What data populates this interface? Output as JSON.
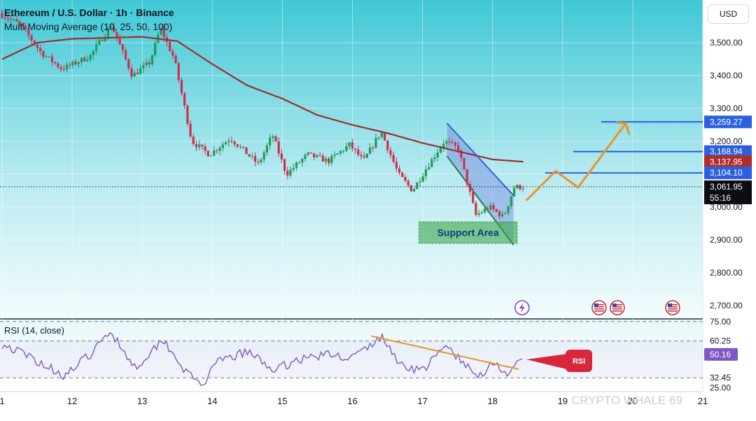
{
  "header": {
    "title": "Ethereum / U.S. Dollar · 1h · Binance",
    "indicator": "Multi Moving Average (10, 25, 50, 100)"
  },
  "currency_button": "USD",
  "watermark": "CRYPTO WHALE 69",
  "colors": {
    "background_top": "#3fc8d6",
    "background_bottom": "#f4fcfd",
    "candle_up": "#1f9a58",
    "candle_down": "#d12e4a",
    "ma_line": "#9b2f2f",
    "target_line": "#2b5fe0",
    "projection": "#e6962a",
    "rsi_line": "#7e57c2",
    "rsi_trend": "#e6962a",
    "support_fill": "#3aa84a",
    "rsi_badge": "#d8263a"
  },
  "chart_data": [
    {
      "type": "candlestick",
      "title": "Ethereum / U.S. Dollar · 1h · Binance",
      "x_tick_labels": [
        "1",
        "12",
        "13",
        "14",
        "15",
        "16",
        "17",
        "18",
        "19",
        "20",
        "21"
      ],
      "y_ticks": [
        3500,
        3400,
        3300,
        3200,
        3100,
        3000,
        2900,
        2800,
        2700
      ],
      "y_tick_labels": [
        "3,500.00",
        "3,400.00",
        "3,300.00",
        "3,200.00",
        "3,100.00",
        "3,000.00",
        "2,900.00",
        "2,800.00",
        "2,700.00"
      ],
      "ylim": [
        2660,
        3630
      ],
      "grid": true,
      "price_path_anchors": [
        {
          "day": 11.0,
          "price": 3590
        },
        {
          "day": 11.3,
          "price": 3555
        },
        {
          "day": 11.6,
          "price": 3470
        },
        {
          "day": 11.9,
          "price": 3420
        },
        {
          "day": 12.3,
          "price": 3460
        },
        {
          "day": 12.6,
          "price": 3555
        },
        {
          "day": 12.9,
          "price": 3400
        },
        {
          "day": 13.15,
          "price": 3440
        },
        {
          "day": 13.3,
          "price": 3545
        },
        {
          "day": 13.5,
          "price": 3450
        },
        {
          "day": 13.75,
          "price": 3200
        },
        {
          "day": 14.0,
          "price": 3160
        },
        {
          "day": 14.3,
          "price": 3210
        },
        {
          "day": 14.7,
          "price": 3130
        },
        {
          "day": 14.9,
          "price": 3220
        },
        {
          "day": 15.1,
          "price": 3100
        },
        {
          "day": 15.4,
          "price": 3160
        },
        {
          "day": 15.7,
          "price": 3140
        },
        {
          "day": 16.0,
          "price": 3190
        },
        {
          "day": 16.2,
          "price": 3140
        },
        {
          "day": 16.45,
          "price": 3230
        },
        {
          "day": 16.7,
          "price": 3100
        },
        {
          "day": 16.9,
          "price": 3050
        },
        {
          "day": 17.1,
          "price": 3120
        },
        {
          "day": 17.35,
          "price": 3200
        },
        {
          "day": 17.55,
          "price": 3180
        },
        {
          "day": 17.8,
          "price": 2975
        },
        {
          "day": 18.0,
          "price": 3000
        },
        {
          "day": 18.2,
          "price": 2970
        },
        {
          "day": 18.35,
          "price": 3060
        },
        {
          "day": 18.45,
          "price": 3062
        }
      ],
      "moving_average_anchors": [
        {
          "day": 11.0,
          "price": 3450
        },
        {
          "day": 11.5,
          "price": 3500
        },
        {
          "day": 12.0,
          "price": 3512
        },
        {
          "day": 12.5,
          "price": 3515
        },
        {
          "day": 13.0,
          "price": 3518
        },
        {
          "day": 13.5,
          "price": 3505
        },
        {
          "day": 14.0,
          "price": 3435
        },
        {
          "day": 14.5,
          "price": 3370
        },
        {
          "day": 15.0,
          "price": 3330
        },
        {
          "day": 15.5,
          "price": 3280
        },
        {
          "day": 16.0,
          "price": 3250
        },
        {
          "day": 16.5,
          "price": 3225
        },
        {
          "day": 17.0,
          "price": 3195
        },
        {
          "day": 17.5,
          "price": 3170
        },
        {
          "day": 18.0,
          "price": 3145
        },
        {
          "day": 18.45,
          "price": 3137.95
        }
      ],
      "current_price": 3061.95,
      "countdown": "55:16",
      "price_labels": [
        {
          "value": 3259.27,
          "label": "3,259.27",
          "kind": "target"
        },
        {
          "value": 3168.94,
          "label": "3,168.94",
          "kind": "target"
        },
        {
          "value": 3137.95,
          "label": "3,137.95",
          "kind": "moving-average"
        },
        {
          "value": 3104.1,
          "label": "3,104.10",
          "kind": "target"
        },
        {
          "value": 3061.95,
          "label": "3,061.95",
          "kind": "last-price"
        }
      ],
      "target_levels": [
        {
          "price": 3259.27,
          "from_day": 19.55,
          "to_day": 21.0
        },
        {
          "price": 3168.94,
          "from_day": 19.15,
          "to_day": 21.0
        },
        {
          "price": 3104.1,
          "from_day": 18.75,
          "to_day": 21.0
        }
      ],
      "projection_path": [
        {
          "day": 18.48,
          "price": 3020
        },
        {
          "day": 18.9,
          "price": 3110
        },
        {
          "day": 19.22,
          "price": 3060
        },
        {
          "day": 19.9,
          "price": 3255
        },
        {
          "day": 19.95,
          "price": 3220
        }
      ],
      "falling_channel": {
        "upper": [
          {
            "day": 17.35,
            "price": 3255
          },
          {
            "day": 18.3,
            "price": 3035
          }
        ],
        "lower": [
          {
            "day": 17.35,
            "price": 3155
          },
          {
            "day": 18.3,
            "price": 2885
          }
        ]
      },
      "support_area": {
        "label": "Support Area",
        "day_from": 16.95,
        "day_to": 18.35,
        "price_from": 2890,
        "price_to": 2955
      },
      "event_icons": [
        {
          "name": "lightning-event-icon",
          "day": 18.42
        },
        {
          "name": "us-flag-event-icon",
          "day": 19.52
        },
        {
          "name": "us-flag-event-icon",
          "day": 19.78
        },
        {
          "name": "us-flag-event-icon",
          "day": 20.57
        }
      ]
    },
    {
      "type": "line",
      "title": "RSI (14, close)",
      "ylim": [
        22,
        77
      ],
      "y_tick_labels": [
        "75.00",
        "60.25",
        "50.16",
        "32.45",
        "25.00"
      ],
      "levels": [
        75,
        60.25,
        32.45
      ],
      "current_value": 50.16,
      "badge": "RSI",
      "anchors": [
        {
          "day": 11.0,
          "price": 58
        },
        {
          "day": 11.4,
          "price": 48
        },
        {
          "day": 11.9,
          "price": 34
        },
        {
          "day": 12.3,
          "price": 52
        },
        {
          "day": 12.55,
          "price": 68
        },
        {
          "day": 12.9,
          "price": 40
        },
        {
          "day": 13.3,
          "price": 62
        },
        {
          "day": 13.65,
          "price": 35
        },
        {
          "day": 13.85,
          "price": 27
        },
        {
          "day": 14.1,
          "price": 45
        },
        {
          "day": 14.5,
          "price": 52
        },
        {
          "day": 14.9,
          "price": 38
        },
        {
          "day": 15.2,
          "price": 46
        },
        {
          "day": 15.6,
          "price": 50
        },
        {
          "day": 16.0,
          "price": 48
        },
        {
          "day": 16.3,
          "price": 58
        },
        {
          "day": 16.4,
          "price": 64
        },
        {
          "day": 16.7,
          "price": 42
        },
        {
          "day": 17.0,
          "price": 38
        },
        {
          "day": 17.35,
          "price": 57
        },
        {
          "day": 17.6,
          "price": 42
        },
        {
          "day": 17.8,
          "price": 33
        },
        {
          "day": 18.0,
          "price": 45
        },
        {
          "day": 18.25,
          "price": 34
        },
        {
          "day": 18.45,
          "price": 50.16
        }
      ],
      "trendline": [
        {
          "day": 16.27,
          "price": 64
        },
        {
          "day": 18.37,
          "price": 39
        }
      ]
    }
  ]
}
